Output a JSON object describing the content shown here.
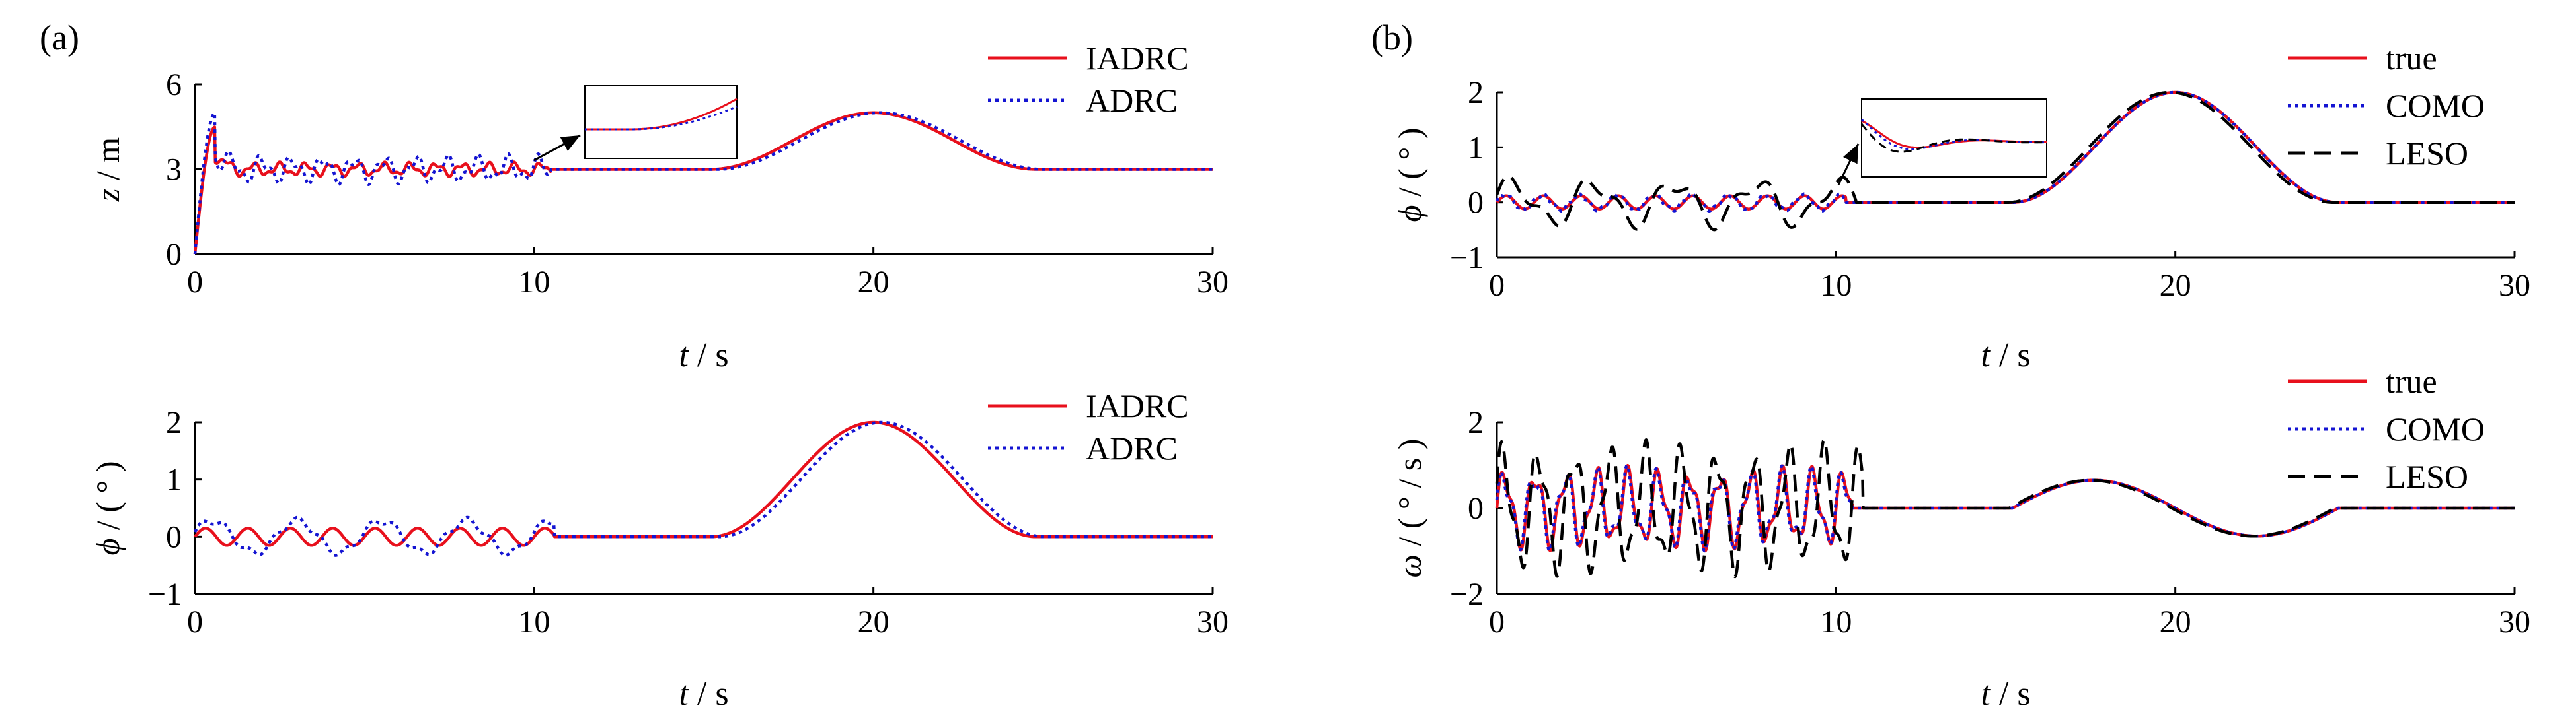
{
  "figure": {
    "panel_labels": [
      "(a)",
      "(b)"
    ]
  },
  "colors": {
    "red": "#e8101c",
    "blue": "#1414d2",
    "black": "#000000"
  },
  "chart_data": [
    {
      "id": "a1",
      "type": "line",
      "panel": "(a)",
      "xlabel": [
        "t",
        " / s"
      ],
      "ylabel": [
        "z",
        " / m"
      ],
      "xlim": [
        0,
        30
      ],
      "ylim": [
        0,
        6
      ],
      "xticks": [
        0,
        10,
        20,
        30
      ],
      "yticks": [
        0,
        3,
        6
      ],
      "legend_position": "top-right",
      "series": [
        {
          "name": "IADRC",
          "color": "#e8101c",
          "style": "solid"
        },
        {
          "name": "ADRC",
          "color": "#1414d2",
          "style": "dotted"
        }
      ],
      "inset": true
    },
    {
      "id": "a2",
      "type": "line",
      "panel": "(a)",
      "xlabel": [
        "t",
        " / s"
      ],
      "ylabel": [
        "ϕ",
        " / ( ° )"
      ],
      "xlim": [
        0,
        30
      ],
      "ylim": [
        -1,
        2
      ],
      "xticks": [
        0,
        10,
        20,
        30
      ],
      "yticks": [
        -1,
        0,
        1,
        2
      ],
      "legend_position": "top-right",
      "series": [
        {
          "name": "IADRC",
          "color": "#e8101c",
          "style": "solid"
        },
        {
          "name": "ADRC",
          "color": "#1414d2",
          "style": "dotted"
        }
      ],
      "inset": false
    },
    {
      "id": "b1",
      "type": "line",
      "panel": "(b)",
      "xlabel": [
        "t",
        " / s"
      ],
      "ylabel": [
        "ϕ",
        " / ( ° )"
      ],
      "xlim": [
        0,
        30
      ],
      "ylim": [
        -1,
        2
      ],
      "xticks": [
        0,
        10,
        20,
        30
      ],
      "yticks": [
        -1,
        0,
        1,
        2
      ],
      "legend_position": "top-right",
      "series": [
        {
          "name": "true",
          "color": "#e8101c",
          "style": "solid"
        },
        {
          "name": "COMO",
          "color": "#1414d2",
          "style": "dotted"
        },
        {
          "name": "LESO",
          "color": "#000000",
          "style": "dashed"
        }
      ],
      "inset": true
    },
    {
      "id": "b2",
      "type": "line",
      "panel": "(b)",
      "xlabel": [
        "t",
        " / s"
      ],
      "ylabel": [
        "ω",
        " / ( ° / s )"
      ],
      "xlim": [
        0,
        30
      ],
      "ylim": [
        -2,
        2
      ],
      "xticks": [
        0,
        10,
        20,
        30
      ],
      "yticks": [
        -2,
        0,
        2
      ],
      "legend_position": "top-right",
      "series": [
        {
          "name": "true",
          "color": "#e8101c",
          "style": "solid"
        },
        {
          "name": "COMO",
          "color": "#1414d2",
          "style": "dotted"
        },
        {
          "name": "LESO",
          "color": "#000000",
          "style": "dashed"
        }
      ],
      "inset": false
    }
  ]
}
